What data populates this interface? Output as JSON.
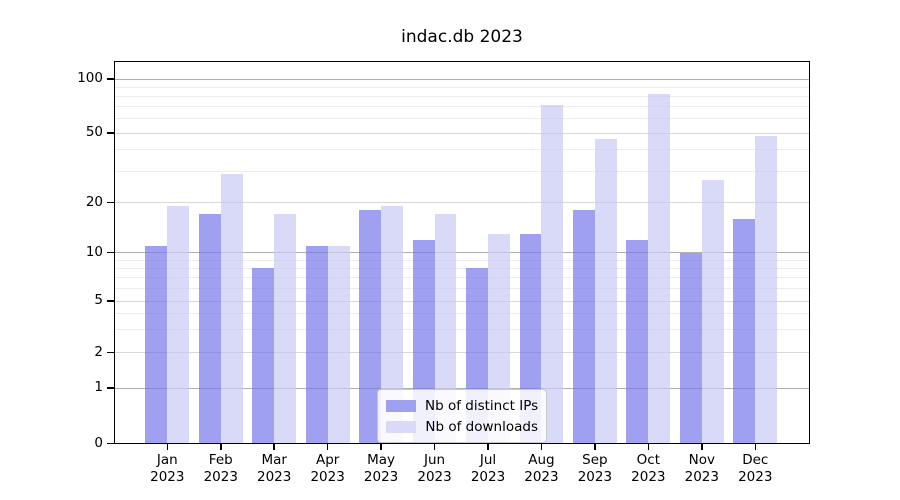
{
  "title": "indac.db 2023",
  "chart_data": {
    "type": "bar",
    "title": "indac.db 2023",
    "categories": [
      "Jan 2023",
      "Feb 2023",
      "Mar 2023",
      "Apr 2023",
      "May 2023",
      "Jun 2023",
      "Jul 2023",
      "Aug 2023",
      "Sep 2023",
      "Oct 2023",
      "Nov 2023",
      "Dec 2023"
    ],
    "series": [
      {
        "name": "Nb of distinct IPs",
        "color": "#a0a0f0",
        "fill": "rgba(119,119,234,0.7)",
        "values": [
          11,
          17,
          8,
          11,
          18,
          12,
          8,
          13,
          18,
          12,
          10,
          16
        ]
      },
      {
        "name": "Nb of downloads",
        "color": "#d9d9f8",
        "fill": "rgba(201,201,245,0.7)",
        "values": [
          19,
          29,
          17,
          11,
          19,
          17,
          13,
          72,
          46,
          83,
          27,
          48
        ]
      }
    ],
    "xlabel": "",
    "ylabel": "",
    "yscale": "log-like (0,1,2,5,10,20,50,100)",
    "yticks": [
      0,
      1,
      2,
      5,
      10,
      20,
      50,
      100
    ],
    "ytick_labels": [
      "0",
      "1",
      "2",
      "5",
      "10",
      "20",
      "50",
      "100"
    ],
    "ylim": [
      0,
      125
    ],
    "grid": "on (major + minor horizontal)",
    "legend_position": "lower center"
  },
  "colors": {
    "major_grid": "#b0b0b0",
    "labeled_grid": "#d8d8d8",
    "minor_grid": "#ececec",
    "spine": "#000000"
  }
}
